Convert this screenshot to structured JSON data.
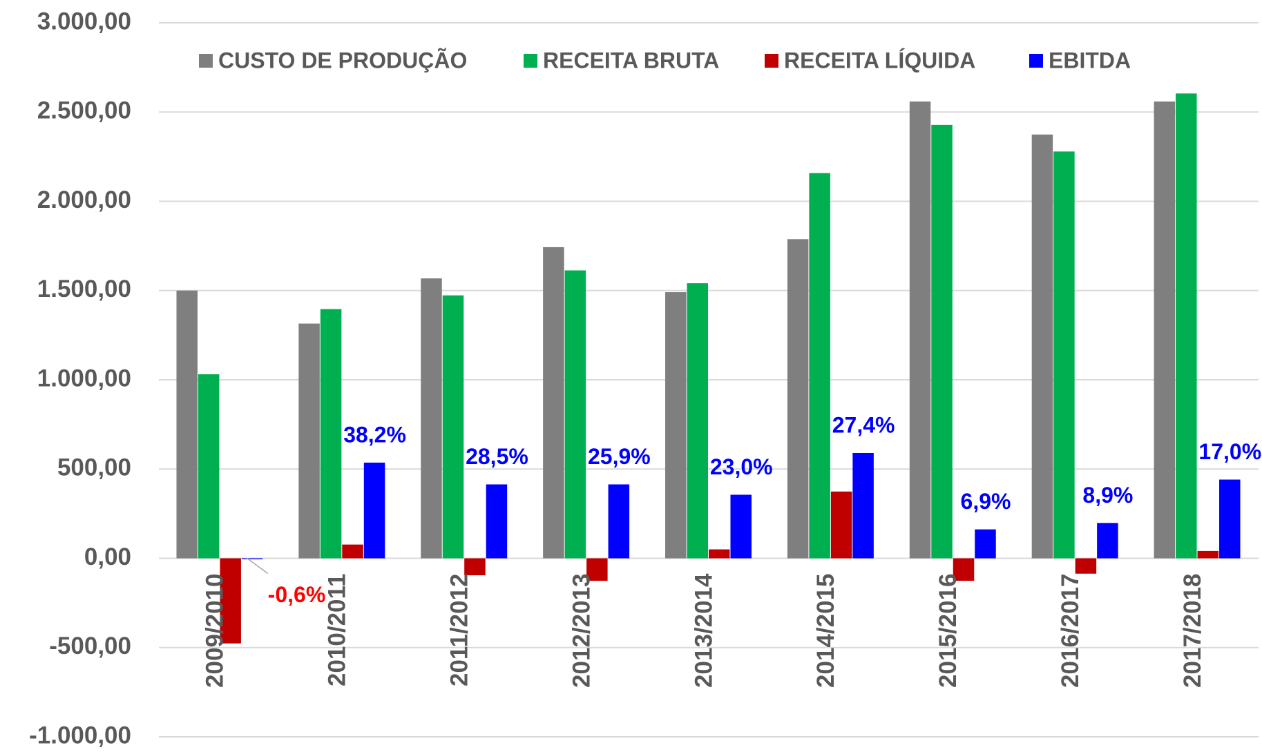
{
  "chart_data": {
    "type": "bar",
    "categories": [
      "2009/2010",
      "2010/2011",
      "2011/2012",
      "2012/2013",
      "2013/2014",
      "2014/2015",
      "2015/2016",
      "2016/2017",
      "2017/2018"
    ],
    "series": [
      {
        "name": "CUSTO DE PRODUÇÃO",
        "color": "#7f7f7f",
        "values": [
          1500,
          1315,
          1568,
          1743,
          1491,
          1788,
          2559,
          2374,
          2559
        ]
      },
      {
        "name": "RECEITA BRUTA",
        "color": "#00b050",
        "values": [
          1031,
          1396,
          1473,
          1613,
          1541,
          2158,
          2428,
          2279,
          2604
        ]
      },
      {
        "name": "RECEITA LÍQUIDA",
        "color": "#c00000",
        "values": [
          -477,
          77,
          -95,
          -126,
          50,
          374,
          -126,
          -86,
          41
        ]
      },
      {
        "name": "EBITDA",
        "color": "#0000ff",
        "values": [
          -5,
          536,
          414,
          414,
          356,
          590,
          162,
          198,
          441
        ]
      }
    ],
    "annotations": [
      "-0,6%",
      "38,2%",
      "28,5%",
      "25,9%",
      "23,0%",
      "27,4%",
      "6,9%",
      "8,9%",
      "17,0%"
    ],
    "annotation_colors": [
      "#ff0000",
      "#0000ff",
      "#0000ff",
      "#0000ff",
      "#0000ff",
      "#0000ff",
      "#0000ff",
      "#0000ff",
      "#0000ff"
    ],
    "ylim": [
      -1000,
      3000
    ],
    "yticks": [
      {
        "value": -1000,
        "label": "-1.000,00"
      },
      {
        "value": -500,
        "label": "-500,00"
      },
      {
        "value": 0,
        "label": "0,00"
      },
      {
        "value": 500,
        "label": "500,00"
      },
      {
        "value": 1000,
        "label": "1.000,00"
      },
      {
        "value": 1500,
        "label": "1.500,00"
      },
      {
        "value": 2000,
        "label": "2.000,00"
      },
      {
        "value": 2500,
        "label": "2.500,00"
      },
      {
        "value": 3000,
        "label": "3.000,00"
      }
    ],
    "grid": true,
    "legend": "top"
  }
}
